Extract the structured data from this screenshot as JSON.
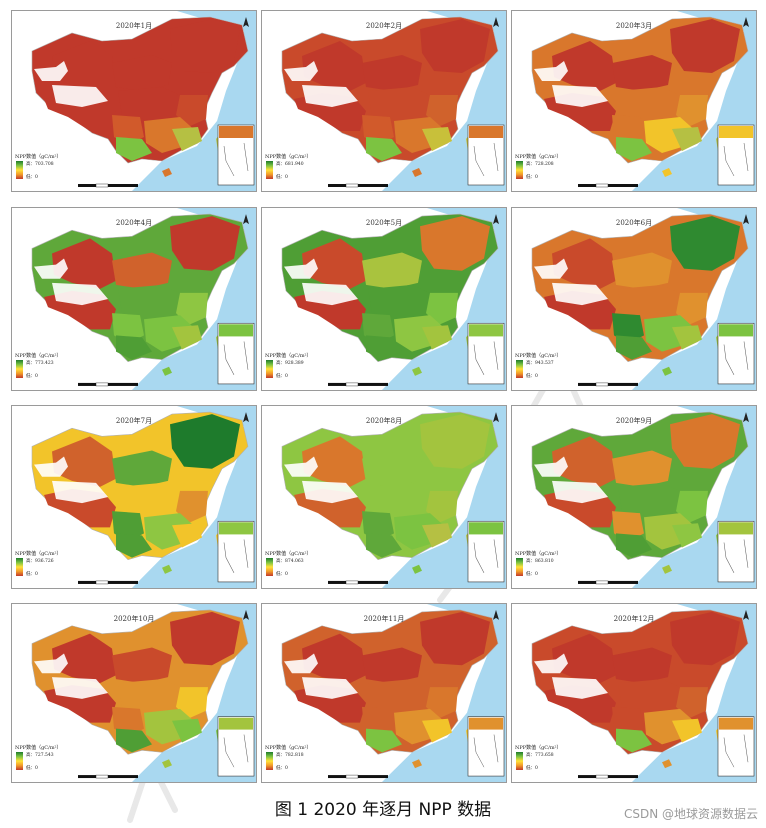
{
  "figure": {
    "caption": "图 1 2020 年逐月 NPP 数据",
    "credit": "CSDN @地球资源数据云",
    "legend": {
      "title": "NPP数值（gC/m²）",
      "high_prefix": "高：",
      "low": "低：0"
    },
    "colors": {
      "ocean": "#a9d8f0",
      "land_neighbor": "#ffffff",
      "no_data": "#ffffff",
      "high": "#1e7b2c",
      "mid_high": "#7cc341",
      "mid": "#ffe23a",
      "mid_low": "#f29a2a",
      "low": "#c0392b"
    },
    "panels": [
      {
        "title": "2020年1月",
        "max": "703.708",
        "colors": {
          "ne": "#c0392b",
          "n": "#c0392b",
          "nw": "#c0392b",
          "tib": "#c0392b",
          "sw": "#d15a2b",
          "c": "#c0392b",
          "e": "#c94a2b",
          "s": "#d9772c",
          "se": "#b5c043",
          "yn": "#7cc341"
        }
      },
      {
        "title": "2020年2月",
        "max": "681.940",
        "colors": {
          "ne": "#c0392b",
          "n": "#c0392b",
          "nw": "#c0392b",
          "tib": "#c0392b",
          "sw": "#d15a2b",
          "c": "#c94a2b",
          "e": "#d0622c",
          "s": "#d9772c",
          "se": "#c8c03a",
          "yn": "#7cc341"
        }
      },
      {
        "title": "2020年3月",
        "max": "728.208",
        "colors": {
          "ne": "#c0392b",
          "n": "#c0392b",
          "nw": "#c0392b",
          "tib": "#c0392b",
          "sw": "#d9772c",
          "c": "#d9772c",
          "e": "#e0912e",
          "s": "#f2c42a",
          "se": "#b5c043",
          "yn": "#7cc341"
        }
      },
      {
        "title": "2020年4月",
        "max": "773.423",
        "colors": {
          "ne": "#c0392b",
          "n": "#d0622c",
          "nw": "#c0392b",
          "tib": "#c0392b",
          "sw": "#7cc341",
          "c": "#5fa83a",
          "e": "#8ec642",
          "s": "#7cc341",
          "se": "#a3c43e",
          "yn": "#4f9e35"
        }
      },
      {
        "title": "2020年5月",
        "max": "928.389",
        "colors": {
          "ne": "#d9772c",
          "n": "#a9c33e",
          "nw": "#c94a2b",
          "tib": "#c0392b",
          "sw": "#5fa83a",
          "c": "#4f9e35",
          "e": "#7cc341",
          "s": "#8ec642",
          "se": "#a3c43e",
          "yn": "#4f9e35"
        }
      },
      {
        "title": "2020年6月",
        "max": "943.537",
        "colors": {
          "ne": "#2f8a30",
          "n": "#e0912e",
          "nw": "#c94a2b",
          "tib": "#c0392b",
          "sw": "#2f8a30",
          "c": "#d9772c",
          "e": "#e0912e",
          "s": "#7cc341",
          "se": "#a3c43e",
          "yn": "#4f9e35"
        }
      },
      {
        "title": "2020年7月",
        "max": "936.726",
        "colors": {
          "ne": "#1e7b2c",
          "n": "#5fa83a",
          "nw": "#d0622c",
          "tib": "#c94a2b",
          "sw": "#4f9e35",
          "c": "#f2c42a",
          "e": "#e0912e",
          "s": "#8ec642",
          "se": "#f2c42a",
          "yn": "#4f9e35"
        }
      },
      {
        "title": "2020年8月",
        "max": "874.063",
        "colors": {
          "ne": "#a3c43e",
          "n": "#8ec642",
          "nw": "#d9772c",
          "tib": "#d0622c",
          "sw": "#5fa83a",
          "c": "#8ec642",
          "e": "#a3c43e",
          "s": "#7cc341",
          "se": "#b5c043",
          "yn": "#5fa83a"
        }
      },
      {
        "title": "2020年9月",
        "max": "863.810",
        "colors": {
          "ne": "#d9772c",
          "n": "#e0912e",
          "nw": "#d0622c",
          "tib": "#c94a2b",
          "sw": "#e0912e",
          "c": "#5fa83a",
          "e": "#7cc341",
          "s": "#a3c43e",
          "se": "#8ec642",
          "yn": "#4f9e35"
        }
      },
      {
        "title": "2020年10月",
        "max": "727.543",
        "colors": {
          "ne": "#c0392b",
          "n": "#c94a2b",
          "nw": "#c0392b",
          "tib": "#c0392b",
          "sw": "#d9772c",
          "c": "#e0912e",
          "e": "#f2c42a",
          "s": "#a3c43e",
          "se": "#7cc341",
          "yn": "#4f9e35"
        }
      },
      {
        "title": "2020年11月",
        "max": "782.818",
        "colors": {
          "ne": "#c0392b",
          "n": "#c0392b",
          "nw": "#c0392b",
          "tib": "#c0392b",
          "sw": "#d0622c",
          "c": "#d0622c",
          "e": "#d9772c",
          "s": "#e0912e",
          "se": "#f2c42a",
          "yn": "#7cc341"
        }
      },
      {
        "title": "2020年12月",
        "max": "773.658",
        "colors": {
          "ne": "#c0392b",
          "n": "#c0392b",
          "nw": "#c0392b",
          "tib": "#c0392b",
          "sw": "#c94a2b",
          "c": "#c94a2b",
          "e": "#d0622c",
          "s": "#e0912e",
          "se": "#f2c42a",
          "yn": "#7cc341"
        }
      }
    ]
  }
}
